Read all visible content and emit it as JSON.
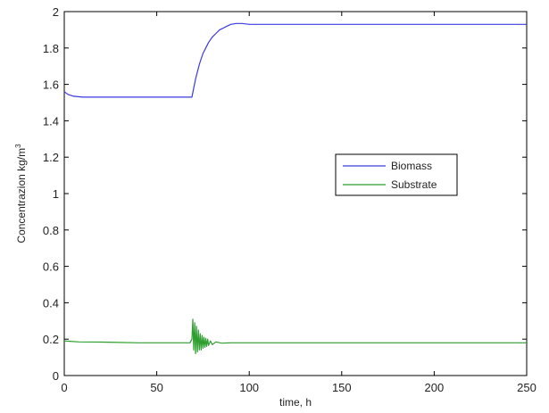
{
  "chart_data": {
    "type": "line",
    "title": "",
    "xlabel": "time, h",
    "ylabel_main": "Concentrazion kg/m",
    "ylabel_sup": "3",
    "xlim": [
      0,
      250
    ],
    "ylim": [
      0,
      2
    ],
    "xticks": [
      0,
      50,
      100,
      150,
      200,
      250
    ],
    "yticks": [
      0,
      0.2,
      0.4,
      0.6,
      0.8,
      1,
      1.2,
      1.4,
      1.6,
      1.8,
      2
    ],
    "grid": false,
    "legend_position": "right-middle",
    "series": [
      {
        "name": "Biomass",
        "color": "#3a3ae0",
        "x": [
          0,
          2,
          5,
          10,
          30,
          50,
          69,
          70,
          71,
          72,
          73,
          74,
          75,
          76,
          77,
          78,
          79,
          80,
          82,
          84,
          86,
          88,
          90,
          93,
          96,
          100,
          150,
          200,
          250
        ],
        "y": [
          1.56,
          1.545,
          1.535,
          1.53,
          1.53,
          1.53,
          1.53,
          1.58,
          1.63,
          1.67,
          1.71,
          1.74,
          1.77,
          1.79,
          1.81,
          1.83,
          1.845,
          1.86,
          1.88,
          1.9,
          1.91,
          1.92,
          1.93,
          1.935,
          1.935,
          1.93,
          1.93,
          1.93,
          1.93
        ]
      },
      {
        "name": "Substrate",
        "color": "#2e9e2e",
        "x": [
          0,
          3,
          8,
          20,
          40,
          60,
          68,
          69,
          69.5,
          70,
          70.5,
          71,
          71.5,
          72,
          72.5,
          73,
          73.5,
          74,
          74.5,
          75,
          75.5,
          76,
          76.5,
          77,
          77.5,
          78,
          79,
          80,
          82,
          85,
          90,
          100,
          150,
          200,
          250
        ],
        "y": [
          0.19,
          0.188,
          0.185,
          0.184,
          0.18,
          0.18,
          0.18,
          0.2,
          0.31,
          0.14,
          0.29,
          0.12,
          0.27,
          0.13,
          0.25,
          0.14,
          0.23,
          0.14,
          0.22,
          0.15,
          0.21,
          0.155,
          0.205,
          0.16,
          0.2,
          0.165,
          0.19,
          0.17,
          0.185,
          0.178,
          0.18,
          0.18,
          0.18,
          0.18,
          0.18
        ]
      }
    ]
  }
}
